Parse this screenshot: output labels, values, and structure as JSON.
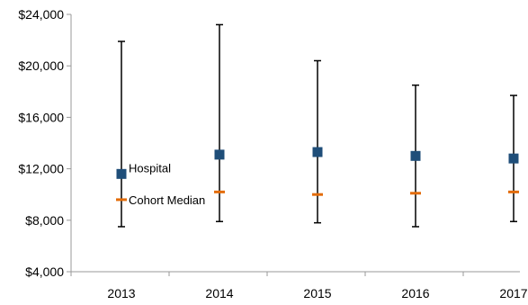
{
  "chart_data": {
    "type": "scatter",
    "categories": [
      "2013",
      "2014",
      "2015",
      "2016",
      "2017"
    ],
    "ylim": [
      4000,
      24000
    ],
    "yticks": [
      4000,
      8000,
      12000,
      16000,
      20000,
      24000
    ],
    "ytick_labels": [
      "$4,000",
      "$8,000",
      "$12,000",
      "$16,000",
      "$20,000",
      "$24,000"
    ],
    "title": "",
    "xlabel": "",
    "ylabel": "",
    "series": [
      {
        "name": "Hospital",
        "marker": "square",
        "color": "#1f4e79",
        "values": [
          11600,
          13100,
          13300,
          13000,
          12800
        ]
      },
      {
        "name": "Cohort Median",
        "marker": "dash",
        "color": "#e36c09",
        "values": [
          9600,
          10200,
          10000,
          10100,
          10200
        ]
      }
    ],
    "range": {
      "color": "#000000",
      "low": [
        7500,
        7900,
        7800,
        7500,
        7900
      ],
      "high": [
        21900,
        23200,
        20400,
        18500,
        17700
      ]
    },
    "annotations": [
      {
        "text": "Hospital",
        "series": "Hospital",
        "category": "2013"
      },
      {
        "text": "Cohort Median",
        "series": "Cohort Median",
        "category": "2013"
      }
    ],
    "grid": false,
    "legend": "none"
  }
}
